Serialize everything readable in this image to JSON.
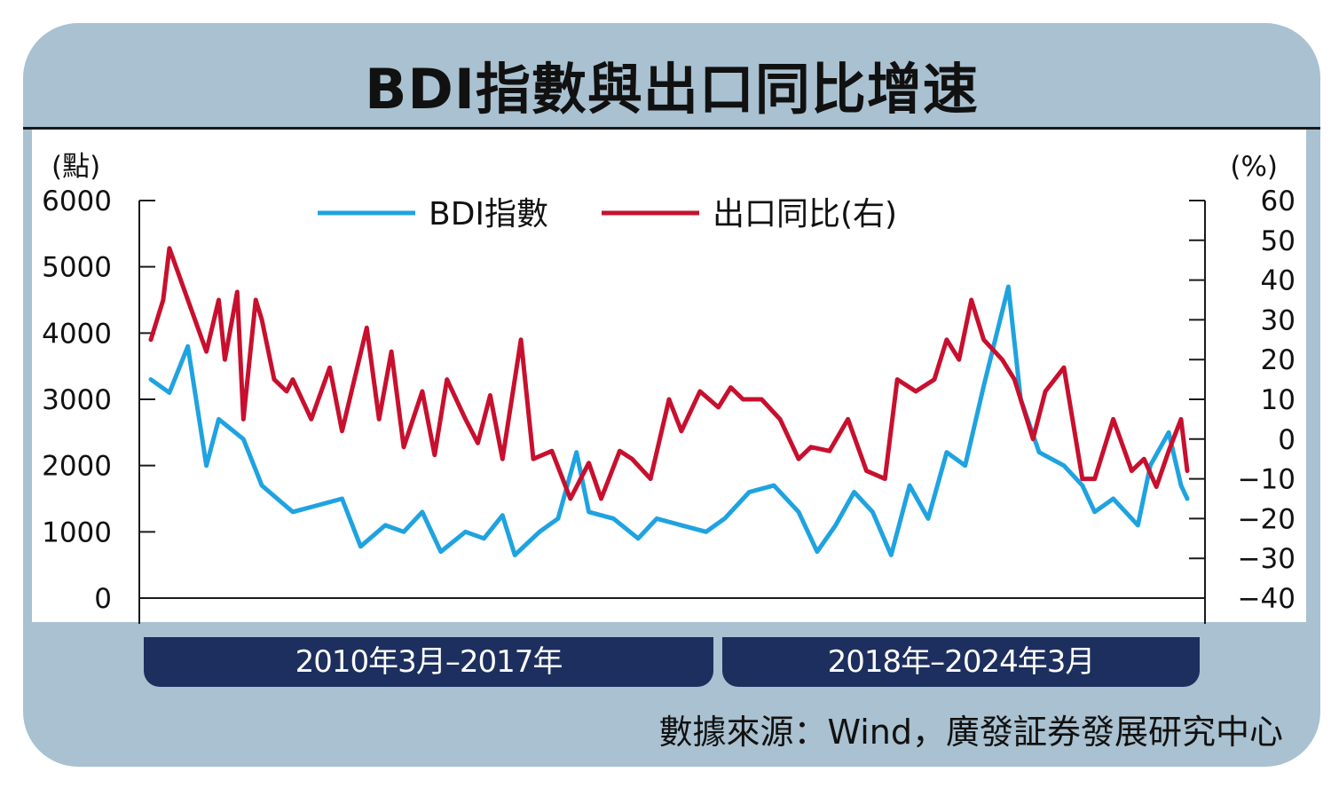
{
  "header": {
    "title": "BDI指數與出口同比增速"
  },
  "bands": {
    "left": "2010年3月–2017年",
    "right": "2018年–2024年3月"
  },
  "source": "數據來源：Wind，廣發証券發展研究中心",
  "colors": {
    "bdi": "#1fa3e0",
    "export": "#c8102e",
    "frame": "#a9c1d0",
    "band": "#1d2f5e"
  },
  "chart_data": {
    "type": "line",
    "title": "BDI指數與出口同比增速",
    "x_range": [
      "2010-03",
      "2024-03"
    ],
    "left_axis": {
      "unit": "(點)",
      "ylim": [
        0,
        6000
      ],
      "ticks": [
        "6000",
        "5000",
        "4000",
        "3000",
        "2000",
        "1000",
        "0"
      ]
    },
    "right_axis": {
      "unit": "(%)",
      "ylim": [
        -40,
        60
      ],
      "ticks": [
        "60",
        "50",
        "40",
        "30",
        "20",
        "10",
        "0",
        "−10",
        "−20",
        "−30",
        "−40"
      ]
    },
    "legend": {
      "placement": "top-center",
      "entries": [
        "BDI指數",
        "出口同比(右)"
      ]
    },
    "series": [
      {
        "name": "BDI指數",
        "axis": "left",
        "x": [
          "2010-03",
          "2010-06",
          "2010-09",
          "2010-12",
          "2011-02",
          "2011-06",
          "2011-09",
          "2012-02",
          "2012-06",
          "2012-10",
          "2013-01",
          "2013-05",
          "2013-08",
          "2013-11",
          "2014-02",
          "2014-06",
          "2014-09",
          "2014-12",
          "2015-02",
          "2015-06",
          "2015-09",
          "2015-12",
          "2016-02",
          "2016-06",
          "2016-10",
          "2017-01",
          "2017-05",
          "2017-09",
          "2017-12",
          "2018-04",
          "2018-08",
          "2018-12",
          "2019-03",
          "2019-06",
          "2019-09",
          "2019-12",
          "2020-03",
          "2020-06",
          "2020-09",
          "2020-12",
          "2021-03",
          "2021-06",
          "2021-10",
          "2021-12",
          "2022-03",
          "2022-07",
          "2022-10",
          "2022-12",
          "2023-03",
          "2023-07",
          "2023-09",
          "2023-12",
          "2024-02",
          "2024-03"
        ],
        "values": [
          3300,
          3100,
          3800,
          2000,
          2700,
          2400,
          1700,
          1300,
          1400,
          1500,
          780,
          1100,
          1000,
          1300,
          700,
          1000,
          900,
          1250,
          650,
          1000,
          1200,
          2200,
          1300,
          1200,
          900,
          1200,
          1100,
          1000,
          1200,
          1600,
          1700,
          1300,
          700,
          1100,
          1600,
          1300,
          650,
          1700,
          1200,
          2200,
          2000,
          3200,
          4700,
          3000,
          2200,
          2000,
          1700,
          1300,
          1500,
          1100,
          2000,
          2500,
          1700,
          1500
        ]
      },
      {
        "name": "出口同比(右)",
        "axis": "right",
        "x": [
          "2010-03",
          "2010-05",
          "2010-06",
          "2010-09",
          "2010-12",
          "2011-02",
          "2011-03",
          "2011-05",
          "2011-06",
          "2011-08",
          "2011-09",
          "2011-11",
          "2012-01",
          "2012-02",
          "2012-05",
          "2012-08",
          "2012-10",
          "2012-12",
          "2013-02",
          "2013-04",
          "2013-06",
          "2013-08",
          "2013-11",
          "2014-01",
          "2014-03",
          "2014-06",
          "2014-08",
          "2014-10",
          "2014-12",
          "2015-03",
          "2015-05",
          "2015-08",
          "2015-11",
          "2016-02",
          "2016-04",
          "2016-07",
          "2016-09",
          "2016-12",
          "2017-03",
          "2017-05",
          "2017-08",
          "2017-11",
          "2018-01",
          "2018-03",
          "2018-06",
          "2018-09",
          "2018-12",
          "2019-02",
          "2019-05",
          "2019-08",
          "2019-11",
          "2020-02",
          "2020-04",
          "2020-07",
          "2020-10",
          "2020-12",
          "2021-02",
          "2021-04",
          "2021-06",
          "2021-09",
          "2021-11",
          "2022-02",
          "2022-04",
          "2022-07",
          "2022-10",
          "2022-12",
          "2023-03",
          "2023-06",
          "2023-08",
          "2023-10",
          "2023-12",
          "2024-02",
          "2024-03"
        ],
        "values": [
          25,
          35,
          48,
          35,
          22,
          35,
          20,
          37,
          5,
          35,
          30,
          15,
          12,
          15,
          5,
          18,
          2,
          15,
          28,
          5,
          22,
          -2,
          12,
          -4,
          15,
          5,
          -1,
          11,
          -5,
          25,
          -5,
          -3,
          -15,
          -6,
          -15,
          -3,
          -5,
          -10,
          10,
          2,
          12,
          8,
          13,
          10,
          10,
          5,
          -5,
          -2,
          -3,
          5,
          -8,
          -10,
          15,
          12,
          15,
          25,
          20,
          35,
          25,
          20,
          15,
          0,
          12,
          18,
          -10,
          -10,
          5,
          -8,
          -5,
          -12,
          -3,
          5,
          -8
        ]
      }
    ]
  }
}
